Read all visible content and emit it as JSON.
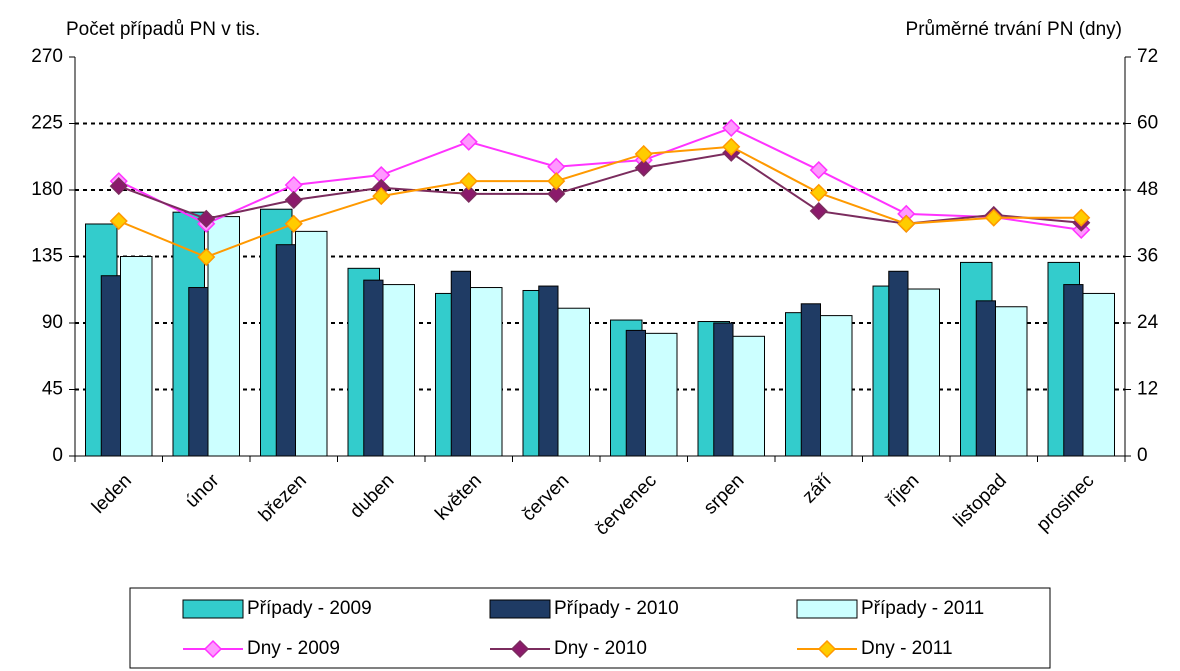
{
  "chart_data": {
    "type": "bar-line",
    "y_title": "Počet případů PN v tis.",
    "y2_title": "Průměrné trvání PN (dny)",
    "categories": [
      "leden",
      "únor",
      "březen",
      "duben",
      "květen",
      "červen",
      "červenec",
      "srpen",
      "září",
      "říjen",
      "listopad",
      "prosinec"
    ],
    "ylim": [
      0,
      270
    ],
    "yticks": [
      0,
      45,
      90,
      135,
      180,
      225,
      270
    ],
    "y2lim": [
      0,
      72
    ],
    "y2ticks": [
      0,
      12,
      24,
      36,
      48,
      60,
      72
    ],
    "grid": true,
    "legend": "bottom",
    "series": [
      {
        "name": "Případy - 2009",
        "type": "bar",
        "color": "#33cccc",
        "values": [
          157,
          165,
          167,
          127,
          110,
          112,
          92,
          91,
          97,
          115,
          131,
          131
        ]
      },
      {
        "name": "Případy - 2010",
        "type": "bar",
        "color": "#1f3b64",
        "values": [
          122,
          114,
          143,
          119,
          125,
          115,
          85,
          90,
          103,
          125,
          105,
          116
        ]
      },
      {
        "name": "Případy - 2011",
        "type": "bar",
        "color": "#ccffff",
        "values": [
          135,
          162,
          152,
          116,
          114,
          100,
          83,
          81,
          95,
          113,
          101,
          110
        ]
      },
      {
        "name": "Dny - 2009",
        "type": "line",
        "axis": "y2",
        "color": "#ff33ff",
        "marker_color": "#ff99ff",
        "values": [
          49.6,
          41.9,
          48.9,
          50.7,
          56.7,
          52.2,
          53.4,
          59.2,
          51.6,
          43.7,
          43.1,
          40.8
        ]
      },
      {
        "name": "Dny - 2010",
        "type": "line",
        "axis": "y2",
        "color": "#7b2c5e",
        "marker_color": "#8b1a6b",
        "values": [
          48.7,
          42.8,
          46.2,
          48.4,
          47.3,
          47.3,
          52.0,
          54.7,
          44.2,
          41.9,
          43.5,
          42.1
        ]
      },
      {
        "name": "Dny - 2011",
        "type": "line",
        "axis": "y2",
        "color": "#ff9900",
        "marker_color": "#ffcc00",
        "values": [
          42.4,
          35.9,
          41.9,
          46.9,
          49.6,
          49.6,
          54.5,
          55.8,
          47.5,
          41.9,
          43.0,
          43.0
        ]
      }
    ]
  }
}
